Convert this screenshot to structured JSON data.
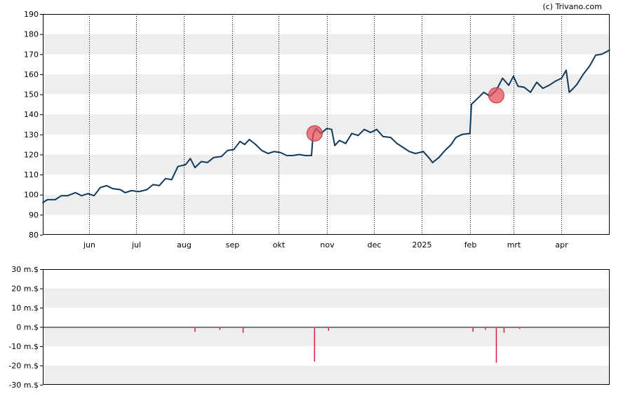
{
  "credit": "(c) Trivano.com",
  "colors": {
    "price_line": "#0f3a5c",
    "band": "#eeeeee",
    "marker_fill": "#e8505b",
    "marker_stroke": "#c0303a",
    "volume_bar": "#d6203a",
    "grid": "#000000"
  },
  "chart_data": [
    {
      "type": "line",
      "title": "",
      "xlabel": "",
      "ylabel": "",
      "ylim": [
        80,
        190
      ],
      "yticks": [
        80,
        90,
        100,
        110,
        120,
        130,
        140,
        150,
        160,
        170,
        180,
        190
      ],
      "ytick_labels": [
        "80",
        "90",
        "100",
        "110",
        "120",
        "130",
        "140",
        "150",
        "160",
        "170",
        "180",
        "190"
      ],
      "xlim": [
        "2024-05-02",
        "2025-05-02"
      ],
      "xticks": [
        "2024-06-01",
        "2024-07-01",
        "2024-08-01",
        "2024-09-01",
        "2024-10-01",
        "2024-11-01",
        "2024-12-01",
        "2025-01-01",
        "2025-02-01",
        "2025-03-01",
        "2025-04-01"
      ],
      "xtick_labels": [
        "jun",
        "jul",
        "aug",
        "sep",
        "okt",
        "nov",
        "dec",
        "2025",
        "feb",
        "mrt",
        "apr"
      ],
      "grid": true,
      "series": [
        {
          "points": [
            [
              "2024-05-02",
              96
            ],
            [
              "2024-05-05",
              97.5
            ],
            [
              "2024-05-10",
              97.5
            ],
            [
              "2024-05-14",
              99.5
            ],
            [
              "2024-05-18",
              99.5
            ],
            [
              "2024-05-23",
              101
            ],
            [
              "2024-05-27",
              99.5
            ],
            [
              "2024-05-31",
              100.5
            ],
            [
              "2024-06-04",
              99.5
            ],
            [
              "2024-06-08",
              103.5
            ],
            [
              "2024-06-12",
              104.5
            ],
            [
              "2024-06-16",
              103
            ],
            [
              "2024-06-21",
              102.5
            ],
            [
              "2024-06-24",
              101
            ],
            [
              "2024-06-28",
              102
            ],
            [
              "2024-07-03",
              101.5
            ],
            [
              "2024-07-08",
              102.5
            ],
            [
              "2024-07-12",
              105
            ],
            [
              "2024-07-16",
              104.5
            ],
            [
              "2024-07-20",
              108
            ],
            [
              "2024-07-24",
              107.5
            ],
            [
              "2024-07-28",
              114
            ],
            [
              "2024-08-02",
              115
            ],
            [
              "2024-08-05",
              118
            ],
            [
              "2024-08-08",
              113.5
            ],
            [
              "2024-08-12",
              116.5
            ],
            [
              "2024-08-16",
              116
            ],
            [
              "2024-08-20",
              118.5
            ],
            [
              "2024-08-25",
              119
            ],
            [
              "2024-08-29",
              122
            ],
            [
              "2024-09-02",
              122.5
            ],
            [
              "2024-09-06",
              126.5
            ],
            [
              "2024-09-09",
              125
            ],
            [
              "2024-09-12",
              127.5
            ],
            [
              "2024-09-16",
              125
            ],
            [
              "2024-09-20",
              122
            ],
            [
              "2024-09-24",
              120.5
            ],
            [
              "2024-09-28",
              121.5
            ],
            [
              "2024-10-02",
              121
            ],
            [
              "2024-10-06",
              119.5
            ],
            [
              "2024-10-10",
              119.5
            ],
            [
              "2024-10-14",
              120
            ],
            [
              "2024-10-18",
              119.5
            ],
            [
              "2024-10-22",
              119.5
            ],
            [
              "2024-10-23",
              130
            ],
            [
              "2024-10-25",
              133
            ],
            [
              "2024-10-28",
              130.5
            ],
            [
              "2024-11-01",
              133
            ],
            [
              "2024-11-04",
              132.5
            ],
            [
              "2024-11-06",
              124.5
            ],
            [
              "2024-11-09",
              127
            ],
            [
              "2024-11-13",
              125.5
            ],
            [
              "2024-11-17",
              130.5
            ],
            [
              "2024-11-21",
              129.5
            ],
            [
              "2024-11-25",
              132.5
            ],
            [
              "2024-11-29",
              131
            ],
            [
              "2024-12-03",
              132.5
            ],
            [
              "2024-12-07",
              129
            ],
            [
              "2024-12-12",
              128.5
            ],
            [
              "2024-12-16",
              125.5
            ],
            [
              "2024-12-20",
              123.5
            ],
            [
              "2024-12-24",
              121.5
            ],
            [
              "2024-12-28",
              120.5
            ],
            [
              "2025-01-02",
              121.5
            ],
            [
              "2025-01-06",
              118
            ],
            [
              "2025-01-08",
              116
            ],
            [
              "2025-01-12",
              118.5
            ],
            [
              "2025-01-16",
              122
            ],
            [
              "2025-01-20",
              125
            ],
            [
              "2025-01-23",
              128.5
            ],
            [
              "2025-01-27",
              130
            ],
            [
              "2025-02-01",
              130.5
            ],
            [
              "2025-02-02",
              145
            ],
            [
              "2025-02-06",
              148
            ],
            [
              "2025-02-10",
              151
            ],
            [
              "2025-02-14",
              149
            ],
            [
              "2025-02-18",
              152
            ],
            [
              "2025-02-22",
              158
            ],
            [
              "2025-02-26",
              154.5
            ],
            [
              "2025-03-01",
              159
            ],
            [
              "2025-03-04",
              154
            ],
            [
              "2025-03-08",
              153.5
            ],
            [
              "2025-03-12",
              151
            ],
            [
              "2025-03-16",
              156
            ],
            [
              "2025-03-20",
              153
            ],
            [
              "2025-03-24",
              154.5
            ],
            [
              "2025-03-28",
              156.5
            ],
            [
              "2025-04-01",
              158
            ],
            [
              "2025-04-04",
              162
            ],
            [
              "2025-04-06",
              151
            ],
            [
              "2025-04-08",
              152.5
            ],
            [
              "2025-04-11",
              155
            ],
            [
              "2025-04-15",
              160
            ],
            [
              "2025-04-19",
              164
            ],
            [
              "2025-04-23",
              169.5
            ],
            [
              "2025-04-27",
              170
            ],
            [
              "2025-05-02",
              172
            ]
          ]
        }
      ],
      "markers": [
        {
          "date": "2024-10-24",
          "value": 130.5
        },
        {
          "date": "2025-02-18",
          "value": 149.5
        }
      ]
    },
    {
      "type": "bar",
      "title": "",
      "xlabel": "",
      "ylabel": "",
      "ylim": [
        -30,
        30
      ],
      "yticks": [
        -30,
        -20,
        -10,
        0,
        10,
        20,
        30
      ],
      "ytick_labels": [
        "-30 m.$",
        "-20 m.$",
        "-10 m.$",
        "0 m.$",
        "10 m.$",
        "20 m.$",
        "30 m.$"
      ],
      "xlim": [
        "2024-05-02",
        "2025-05-02"
      ],
      "grid": true,
      "bars": [
        {
          "date": "2024-08-08",
          "value": -2.5
        },
        {
          "date": "2024-08-24",
          "value": -1.5
        },
        {
          "date": "2024-09-08",
          "value": -3
        },
        {
          "date": "2024-10-24",
          "value": -18
        },
        {
          "date": "2024-11-02",
          "value": -2
        },
        {
          "date": "2025-02-03",
          "value": -2.5
        },
        {
          "date": "2025-02-11",
          "value": -1.5
        },
        {
          "date": "2025-02-18",
          "value": -18.5
        },
        {
          "date": "2025-02-23",
          "value": -3
        },
        {
          "date": "2025-03-05",
          "value": -1
        }
      ]
    }
  ]
}
